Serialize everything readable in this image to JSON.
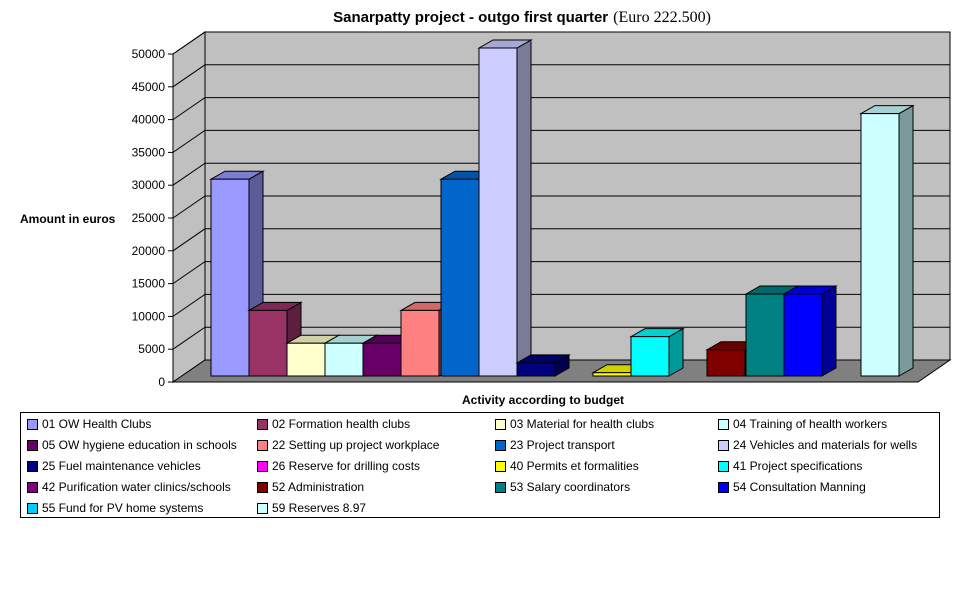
{
  "chart_data": {
    "type": "bar",
    "title": "Sanarpatty project - outgo first quarter",
    "subtitle": "(Euro 222.500)",
    "ylabel": "Amount in euros",
    "xlabel": "Activity according to budget",
    "ylim": [
      0,
      50000
    ],
    "yticks": [
      "0",
      "5000",
      "10000",
      "15000",
      "20000",
      "25000",
      "30000",
      "35000",
      "40000",
      "45000",
      "50000"
    ],
    "series": [
      {
        "name": "01 OW Health Clubs",
        "value": 30000,
        "color": "#9999FF"
      },
      {
        "name": "02 Formation health clubs",
        "value": 10000,
        "color": "#993366"
      },
      {
        "name": "03 Material for health clubs",
        "value": 5000,
        "color": "#FFFFCC"
      },
      {
        "name": "04 Training of health workers",
        "value": 5000,
        "color": "#CCFFFF"
      },
      {
        "name": "05 OW hygiene education in schools",
        "value": 5000,
        "color": "#660066"
      },
      {
        "name": "22 Setting up project workplace",
        "value": 10000,
        "color": "#FF8080"
      },
      {
        "name": "23 Project transport",
        "value": 30000,
        "color": "#0066CC"
      },
      {
        "name": "24 Vehicles and materials for wells",
        "value": 50000,
        "color": "#CCCCFF"
      },
      {
        "name": "25 Fuel maintenance vehicles",
        "value": 2000,
        "color": "#000080"
      },
      {
        "name": "26 Reserve for drilling costs",
        "value": 0,
        "color": "#FF00FF"
      },
      {
        "name": "40 Permits et formalities",
        "value": 500,
        "color": "#FFFF00"
      },
      {
        "name": "41 Project specifications",
        "value": 6000,
        "color": "#00FFFF"
      },
      {
        "name": "42 Purification water clinics/schools",
        "value": 0,
        "color": "#800080"
      },
      {
        "name": "52 Administration",
        "value": 4000,
        "color": "#800000"
      },
      {
        "name": "53 Salary coordinators",
        "value": 12500,
        "color": "#008080"
      },
      {
        "name": "54 Consultation Manning",
        "value": 12500,
        "color": "#0000FF"
      },
      {
        "name": "55 Fund for PV home systems",
        "value": 0,
        "color": "#00CCFF"
      },
      {
        "name": "59 Reserves 8.97",
        "value": 40000,
        "color": "#CCFFFF"
      }
    ]
  }
}
